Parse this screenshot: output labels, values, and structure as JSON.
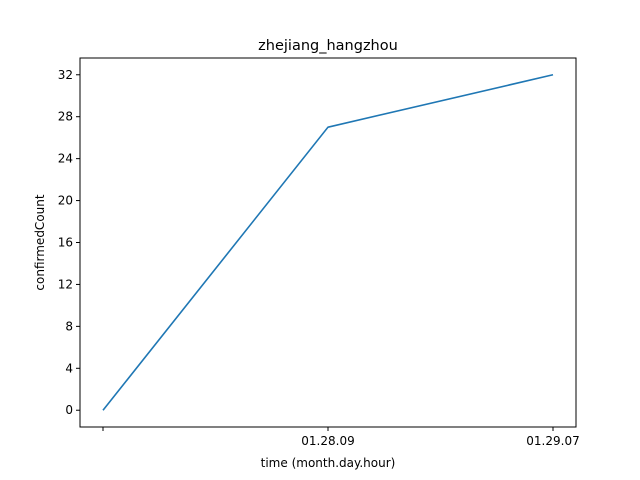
{
  "chart_data": {
    "type": "line",
    "title": "zhejiang_hangzhou",
    "xlabel": "time (month.day.hour)",
    "ylabel": "confirmedCount",
    "categories": [
      "",
      "01.28.09",
      "01.29.07"
    ],
    "series": [
      {
        "values": [
          0,
          27,
          32
        ],
        "color": "#1f77b4"
      }
    ],
    "ylim": [
      -1.6,
      33.6
    ],
    "yticks": [
      0,
      4,
      8,
      12,
      16,
      20,
      24,
      28,
      32
    ],
    "grid": false,
    "legend": "none"
  }
}
